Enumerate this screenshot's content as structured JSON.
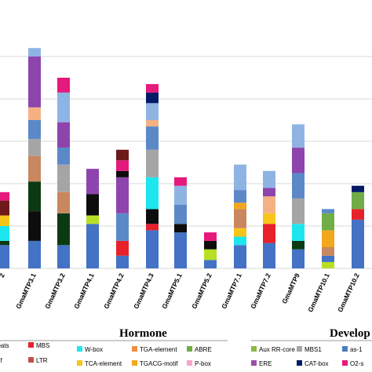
{
  "chart_data": {
    "type": "bar",
    "stacked": true,
    "title": "",
    "xlabel": "",
    "ylabel": "",
    "grid": true,
    "categories": [
      "2",
      "GmaMTP3.1",
      "GmaMTP3.2",
      "GmaMTP4.1",
      "GmaMTP4.2",
      "GmaMTP4.3",
      "GmaMTP5.1",
      "GmaMTP5.2",
      "GmaMTP7.1",
      "GmaMTP7.2",
      "GmaMTP9",
      "GmaMTP10.1",
      "GmaMTP10.2"
    ],
    "series_colors": {
      "base": "#4472c4",
      "LTR": "#c0504d",
      "MBS": "#e8202a",
      "W-box": "#1ee6ee",
      "TCA-element": "#f7c519",
      "TGA-element": "#f28e44",
      "TGACG-motif": "#f2a71c",
      "ABRE": "#70ad47",
      "P-box": "#f7a6c9",
      "ERE": "#9b4fa8",
      "O2-site": "#e6197c",
      "as-1": "#4a7ebb",
      "MBS1": "#a5a5a5",
      "CAT-box": "#001a66",
      "Aux RR-core": "#8db84a",
      "black-band": "#0d0d0d",
      "dark-green-band": "#0b3a12",
      "light-blue-band": "#8fb4e3",
      "mid-blue-band": "#5b89c7",
      "dark-red-band": "#6e1a1a",
      "lime-band": "#b7e025",
      "purple-band": "#8e44ad",
      "tan-band": "#c8875f",
      "peach-band": "#f4b183"
    },
    "stacks": [
      {
        "category": "2",
        "segments": [
          [
            "base",
            0.55
          ],
          [
            "dark-green-band",
            0.1
          ],
          [
            "W-box",
            0.35
          ],
          [
            "TCA-element",
            0.25
          ],
          [
            "dark-red-band",
            0.35
          ],
          [
            "O2-site",
            0.2
          ]
        ]
      },
      {
        "category": "GmaMTP3.1",
        "segments": [
          [
            "base",
            0.65
          ],
          [
            "black-band",
            0.7
          ],
          [
            "dark-green-band",
            0.7
          ],
          [
            "tan-band",
            0.6
          ],
          [
            "MBS1",
            0.4
          ],
          [
            "mid-blue-band",
            0.45
          ],
          [
            "peach-band",
            0.3
          ],
          [
            "purple-band",
            1.2
          ],
          [
            "light-blue-band",
            0.2
          ]
        ]
      },
      {
        "category": "GmaMTP3.2",
        "segments": [
          [
            "base",
            0.55
          ],
          [
            "dark-green-band",
            0.75
          ],
          [
            "tan-band",
            0.5
          ],
          [
            "MBS1",
            0.65
          ],
          [
            "mid-blue-band",
            0.4
          ],
          [
            "purple-band",
            0.6
          ],
          [
            "light-blue-band",
            0.7
          ],
          [
            "O2-site",
            0.35
          ]
        ]
      },
      {
        "category": "GmaMTP4.1",
        "segments": [
          [
            "base",
            1.05
          ],
          [
            "lime-band",
            0.2
          ],
          [
            "black-band",
            0.5
          ],
          [
            "purple-band",
            0.6
          ]
        ]
      },
      {
        "category": "GmaMTP4.2",
        "segments": [
          [
            "base",
            0.3
          ],
          [
            "MBS",
            0.35
          ],
          [
            "mid-blue-band",
            0.65
          ],
          [
            "purple-band",
            0.85
          ],
          [
            "black-band",
            0.15
          ],
          [
            "O2-site",
            0.25
          ],
          [
            "dark-red-band",
            0.25
          ]
        ]
      },
      {
        "category": "GmaMTP4.3",
        "segments": [
          [
            "base",
            0.9
          ],
          [
            "MBS",
            0.15
          ],
          [
            "black-band",
            0.35
          ],
          [
            "W-box",
            0.75
          ],
          [
            "MBS1",
            0.65
          ],
          [
            "mid-blue-band",
            0.55
          ],
          [
            "peach-band",
            0.15
          ],
          [
            "light-blue-band",
            0.4
          ],
          [
            "CAT-box",
            0.25
          ],
          [
            "O2-site",
            0.2
          ]
        ]
      },
      {
        "category": "GmaMTP5.1",
        "segments": [
          [
            "base",
            0.85
          ],
          [
            "black-band",
            0.2
          ],
          [
            "mid-blue-band",
            0.45
          ],
          [
            "light-blue-band",
            0.45
          ],
          [
            "O2-site",
            0.2
          ]
        ]
      },
      {
        "category": "GmaMTP5.2",
        "segments": [
          [
            "base",
            0.2
          ],
          [
            "lime-band",
            0.25
          ],
          [
            "black-band",
            0.2
          ],
          [
            "O2-site",
            0.2
          ]
        ]
      },
      {
        "category": "GmaMTP7.1",
        "segments": [
          [
            "base",
            0.55
          ],
          [
            "W-box",
            0.2
          ],
          [
            "TCA-element",
            0.2
          ],
          [
            "tan-band",
            0.45
          ],
          [
            "TGACG-motif",
            0.15
          ],
          [
            "mid-blue-band",
            0.3
          ],
          [
            "light-blue-band",
            0.6
          ]
        ]
      },
      {
        "category": "GmaMTP7.2",
        "segments": [
          [
            "base",
            0.6
          ],
          [
            "MBS",
            0.45
          ],
          [
            "TCA-element",
            0.25
          ],
          [
            "peach-band",
            0.4
          ],
          [
            "purple-band",
            0.2
          ],
          [
            "light-blue-band",
            0.4
          ]
        ]
      },
      {
        "category": "GmaMTP9",
        "segments": [
          [
            "base",
            0.45
          ],
          [
            "dark-green-band",
            0.2
          ],
          [
            "W-box",
            0.4
          ],
          [
            "MBS1",
            0.6
          ],
          [
            "mid-blue-band",
            0.6
          ],
          [
            "purple-band",
            0.6
          ],
          [
            "light-blue-band",
            0.55
          ]
        ]
      },
      {
        "category": "GmaMTP10.1",
        "segments": [
          [
            "lime-band",
            0.15
          ],
          [
            "base",
            0.15
          ],
          [
            "tan-band",
            0.2
          ],
          [
            "TGACG-motif",
            0.4
          ],
          [
            "ABRE",
            0.4
          ],
          [
            "mid-blue-band",
            0.1
          ]
        ]
      },
      {
        "category": "GmaMTP10.2",
        "segments": [
          [
            "base",
            1.15
          ],
          [
            "MBS",
            0.25
          ],
          [
            "ABRE",
            0.4
          ],
          [
            "CAT-box",
            0.15
          ]
        ]
      }
    ],
    "legend": {
      "groups": [
        {
          "title": "",
          "entries": [
            {
              "label": "peats",
              "key": "light-blue-band"
            },
            {
              "label": "MBS",
              "key": "MBS"
            },
            {
              "label": "otif",
              "key": "purple-band"
            },
            {
              "label": "LTR",
              "key": "LTR"
            }
          ]
        },
        {
          "title": "Hormone",
          "entries": [
            {
              "label": "W-box",
              "key": "W-box"
            },
            {
              "label": "TGA-element",
              "key": "TGA-element"
            },
            {
              "label": "ABRE",
              "key": "ABRE"
            },
            {
              "label": "TCA-element",
              "key": "TCA-element"
            },
            {
              "label": "TGACG-motif",
              "key": "TGACG-motif"
            },
            {
              "label": "P-box",
              "key": "P-box"
            },
            {
              "label": "ERE",
              "key": "ERE"
            }
          ]
        },
        {
          "title": "Develop",
          "entries": [
            {
              "label": "Aux RR-core",
              "key": "Aux RR-core"
            },
            {
              "label": "MBS1",
              "key": "MBS1"
            },
            {
              "label": "as-1",
              "key": "as-1"
            },
            {
              "label": "ERE",
              "key": "ERE"
            },
            {
              "label": "CAT-box",
              "key": "CAT-box"
            },
            {
              "label": "O2-s",
              "key": "O2-site"
            }
          ]
        }
      ]
    }
  }
}
